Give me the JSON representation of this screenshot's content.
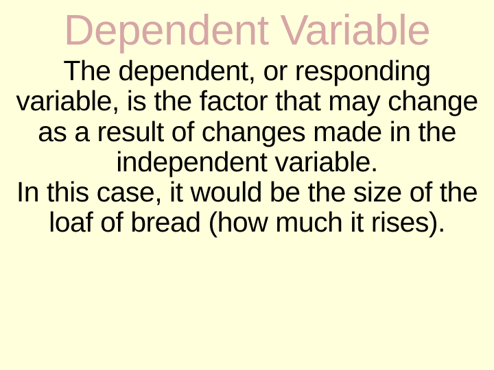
{
  "slide": {
    "background_color": "#ffffdb",
    "title": {
      "text": "Dependent Variable",
      "color": "#d6a6a6",
      "fontsize_pt": 62,
      "font_weight": "normal"
    },
    "paragraph1": {
      "text": "The dependent, or responding variable, is the factor that may change as a result of changes made in the independent variable.",
      "color": "#000000",
      "fontsize_pt": 41
    },
    "paragraph2": {
      "text": "In this case, it would be the size of the loaf of bread (how much it rises).",
      "color": "#000000",
      "fontsize_pt": 41
    }
  }
}
